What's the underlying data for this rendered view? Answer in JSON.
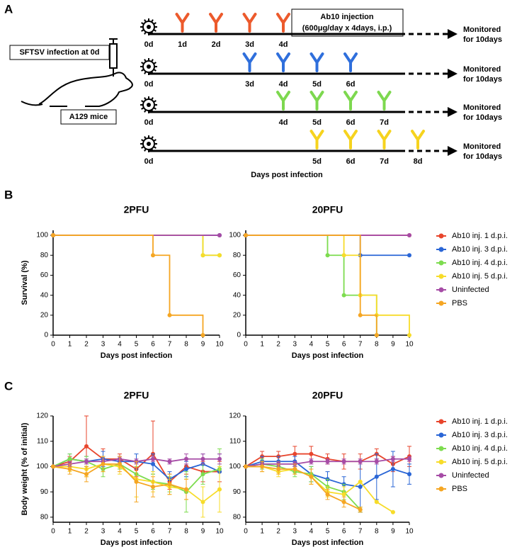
{
  "panel_a": {
    "label": "A",
    "infection": "SFTSV infection at 0d",
    "mice": "A129 mice",
    "injection_title": "Ab10 injection",
    "injection_detail": "(600μg/day x 4days, i.p.)",
    "x_label": "Days post infection",
    "rows": [
      {
        "color": "#ec5a2c",
        "start": "0d",
        "days": [
          "1d",
          "2d",
          "3d",
          "4d"
        ],
        "monitored": [
          "Monitored",
          "for 10days"
        ]
      },
      {
        "color": "#2f6fdc",
        "start": "0d",
        "days": [
          "3d",
          "4d",
          "5d",
          "6d"
        ],
        "monitored": [
          "Monitored",
          "for 10days"
        ]
      },
      {
        "color": "#7dd84f",
        "start": "0d",
        "days": [
          "4d",
          "5d",
          "6d",
          "7d"
        ],
        "monitored": [
          "Monitored",
          "for 10days"
        ]
      },
      {
        "color": "#f6d31e",
        "start": "0d",
        "days": [
          "5d",
          "6d",
          "7d",
          "8d"
        ],
        "monitored": [
          "Monitored",
          "for 10days"
        ]
      }
    ]
  },
  "panel_b": {
    "label": "B"
  },
  "panel_c": {
    "label": "C"
  },
  "chart_data": [
    {
      "type": "line",
      "step": true,
      "title": "2PFU",
      "x_label": "Days post infection",
      "y_label": "Survival (%)",
      "xlim": [
        0,
        10
      ],
      "xticks": [
        0,
        1,
        2,
        3,
        4,
        5,
        6,
        7,
        8,
        9,
        10
      ],
      "ylim": [
        0,
        105
      ],
      "yticks": [
        0,
        20,
        40,
        60,
        80,
        100
      ],
      "series": [
        {
          "color": "#e8452c",
          "x": [
            0,
            10
          ],
          "values": [
            100,
            100
          ]
        },
        {
          "color": "#2a66d6",
          "x": [
            0,
            10
          ],
          "values": [
            100,
            100
          ]
        },
        {
          "color": "#7ddc4f",
          "x": [
            0,
            9,
            10
          ],
          "values": [
            100,
            80,
            80
          ]
        },
        {
          "color": "#f7dc2a",
          "x": [
            0,
            9,
            10
          ],
          "values": [
            100,
            80,
            80
          ]
        },
        {
          "color": "#a64ca6",
          "x": [
            0,
            10
          ],
          "values": [
            100,
            100
          ]
        },
        {
          "color": "#f5a623",
          "x": [
            0,
            6,
            7,
            9
          ],
          "values": [
            100,
            80,
            20,
            0
          ]
        }
      ]
    },
    {
      "type": "line",
      "step": true,
      "title": "20PFU",
      "x_label": "Days post infection",
      "legend": "right",
      "xlim": [
        0,
        10
      ],
      "xticks": [
        0,
        1,
        2,
        3,
        4,
        5,
        6,
        7,
        8,
        9,
        10
      ],
      "ylim": [
        0,
        105
      ],
      "yticks": [
        0,
        20,
        40,
        60,
        80,
        100
      ],
      "series": [
        {
          "name": "Ab10 inj. 1 d.p.i.",
          "color": "#e8452c",
          "x": [
            0,
            10
          ],
          "values": [
            100,
            100
          ]
        },
        {
          "name": "Ab10 inj. 3 d.p.i.",
          "color": "#2a66d6",
          "x": [
            0,
            7,
            10
          ],
          "values": [
            100,
            80,
            80
          ]
        },
        {
          "name": "Ab10 inj. 4 d.p.i.",
          "color": "#7ddc4f",
          "x": [
            0,
            5,
            6,
            8
          ],
          "values": [
            100,
            80,
            40,
            0
          ]
        },
        {
          "name": "Ab10 inj. 5 d.p.i.",
          "color": "#f7dc2a",
          "x": [
            0,
            6,
            7,
            8,
            10
          ],
          "values": [
            100,
            80,
            40,
            20,
            0
          ]
        },
        {
          "name": "Uninfected",
          "color": "#a64ca6",
          "x": [
            0,
            10
          ],
          "values": [
            100,
            100
          ]
        },
        {
          "name": "PBS",
          "color": "#f5a623",
          "x": [
            0,
            7,
            8
          ],
          "values": [
            100,
            20,
            0
          ]
        }
      ]
    },
    {
      "type": "line",
      "title": "2PFU",
      "x_label": "Days post infection",
      "y_label": "Body weight (% of initial)",
      "xlim": [
        0,
        10
      ],
      "xticks": [
        0,
        1,
        2,
        3,
        4,
        5,
        6,
        7,
        8,
        9,
        10
      ],
      "ylim": [
        78,
        120
      ],
      "yticks": [
        80,
        90,
        100,
        110,
        120
      ],
      "x": [
        0,
        1,
        2,
        3,
        4,
        5,
        6,
        7,
        8,
        9,
        10
      ],
      "series": [
        {
          "color": "#e8452c",
          "values": [
            100,
            102,
            108,
            103,
            103,
            99,
            105,
            94,
            100,
            98,
            98
          ],
          "errors": [
            0,
            2,
            12,
            4,
            2,
            3,
            13,
            3,
            3,
            4,
            4
          ]
        },
        {
          "color": "#2a66d6",
          "values": [
            100,
            103,
            102,
            103,
            102,
            102,
            101,
            95,
            99,
            101,
            98
          ],
          "errors": [
            0,
            2,
            2,
            3,
            2,
            3,
            4,
            3,
            3,
            4,
            7
          ]
        },
        {
          "color": "#7ddc4f",
          "values": [
            100,
            103,
            102,
            99,
            101,
            97,
            94,
            93,
            90,
            97,
            99
          ],
          "errors": [
            0,
            2,
            2,
            3,
            2,
            3,
            3,
            3,
            8,
            4,
            8
          ]
        },
        {
          "color": "#f7dc2a",
          "values": [
            100,
            100,
            99,
            101,
            100,
            95,
            94,
            92,
            91,
            86,
            91
          ],
          "errors": [
            0,
            2,
            3,
            3,
            3,
            7,
            4,
            3,
            4,
            6,
            9
          ]
        },
        {
          "color": "#a64ca6",
          "values": [
            100,
            101,
            102,
            102,
            103,
            102,
            103,
            102,
            103,
            103,
            103
          ],
          "errors": [
            0,
            1,
            1,
            1,
            1,
            1,
            1,
            1,
            2,
            2,
            2
          ]
        },
        {
          "color": "#f5a623",
          "values": [
            100,
            99,
            97,
            101,
            101,
            94,
            92,
            93,
            91,
            null,
            null
          ],
          "errors": [
            0,
            2,
            3,
            3,
            3,
            8,
            4,
            4,
            4,
            null,
            null
          ]
        }
      ]
    },
    {
      "type": "line",
      "title": "20PFU",
      "x_label": "Days post infection",
      "legend": "right",
      "xlim": [
        0,
        10
      ],
      "xticks": [
        0,
        1,
        2,
        3,
        4,
        5,
        6,
        7,
        8,
        9,
        10
      ],
      "ylim": [
        78,
        120
      ],
      "yticks": [
        80,
        90,
        100,
        110,
        120
      ],
      "x": [
        0,
        1,
        2,
        3,
        4,
        5,
        6,
        7,
        8,
        9,
        10
      ],
      "series": [
        {
          "name": "Ab10 inj. 1 d.p.i.",
          "color": "#e8452c",
          "values": [
            100,
            104,
            104,
            105,
            105,
            103,
            102,
            102,
            105,
            101,
            104
          ],
          "errors": [
            0,
            2,
            2,
            3,
            3,
            2,
            3,
            3,
            2,
            3,
            4
          ]
        },
        {
          "name": "Ab10 inj. 3 d.p.i.",
          "color": "#2a66d6",
          "values": [
            100,
            102,
            102,
            102,
            97,
            95,
            93,
            92,
            96,
            99,
            97
          ],
          "errors": [
            0,
            2,
            2,
            2,
            3,
            3,
            3,
            10,
            9,
            7,
            4
          ]
        },
        {
          "name": "Ab10 inj. 4 d.p.i.",
          "color": "#7ddc4f",
          "values": [
            100,
            101,
            100,
            98,
            97,
            92,
            90,
            83,
            null,
            null,
            null
          ],
          "errors": [
            0,
            2,
            2,
            2,
            3,
            3,
            3,
            1,
            null,
            null,
            null
          ]
        },
        {
          "name": "Ab10 inj. 5 d.p.i.",
          "color": "#f7dc2a",
          "values": [
            100,
            100,
            98,
            99,
            96,
            90,
            89,
            94,
            86,
            82,
            null
          ],
          "errors": [
            0,
            2,
            2,
            2,
            3,
            2,
            3,
            0,
            0,
            0,
            null
          ]
        },
        {
          "name": "Uninfected",
          "color": "#a64ca6",
          "values": [
            100,
            101,
            101,
            101,
            102,
            102,
            102,
            102,
            102,
            103,
            103
          ],
          "errors": [
            0,
            1,
            1,
            1,
            1,
            1,
            1,
            1,
            1,
            1,
            1
          ]
        },
        {
          "name": "PBS",
          "color": "#f5a623",
          "values": [
            100,
            100,
            99,
            99,
            96,
            89,
            86,
            83,
            null,
            null,
            null
          ],
          "errors": [
            0,
            2,
            2,
            2,
            3,
            2,
            2,
            1,
            null,
            null,
            null
          ]
        }
      ]
    }
  ]
}
